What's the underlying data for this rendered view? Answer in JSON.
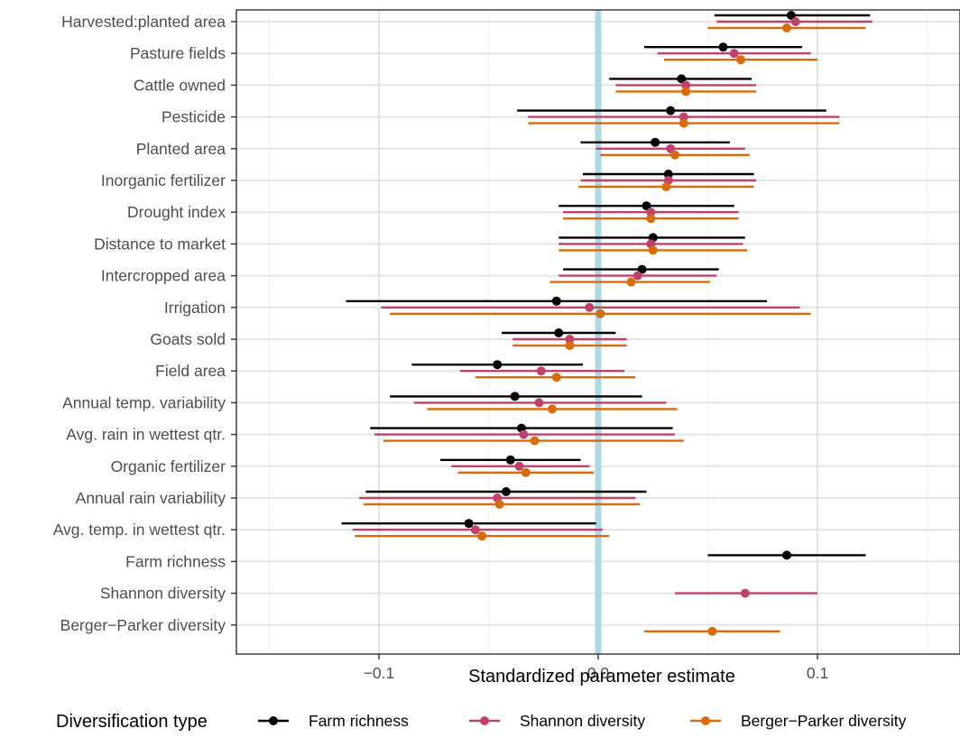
{
  "chart_data": {
    "type": "scatter",
    "subtype": "forest-plot (point estimate with interval)",
    "xlabel": "Standardized parameter estimate",
    "ylabel": "",
    "xlim": [
      -0.165,
      0.165
    ],
    "x_ticks": [
      -0.1,
      0.0,
      0.1
    ],
    "x_tick_labels": [
      "−0.1",
      "0.0",
      "0.1"
    ],
    "reference_line": {
      "x": 0.0,
      "color": "#add8e6"
    },
    "grid": true,
    "legend": {
      "title": "Diversification type",
      "position": "bottom",
      "entries": [
        "Farm richness",
        "Shannon diversity",
        "Berger−Parker diversity"
      ]
    },
    "categories": [
      "Harvested:planted area",
      "Pasture fields",
      "Cattle owned",
      "Pesticide",
      "Planted area",
      "Inorganic fertilizer",
      "Drought index",
      "Distance to market",
      "Intercropped area",
      "Irrigation",
      "Goats sold",
      "Field area",
      "Annual temp. variability",
      "Avg. rain in wettest qtr.",
      "Organic fertilizer",
      "Annual rain variability",
      "Avg. temp. in wettest qtr.",
      "Farm richness",
      "Shannon diversity",
      "Berger−Parker diversity"
    ],
    "series": [
      {
        "name": "Farm richness",
        "color": "#000000",
        "estimate": [
          0.088,
          0.057,
          0.038,
          0.033,
          0.026,
          0.032,
          0.022,
          0.025,
          0.02,
          -0.019,
          -0.018,
          -0.046,
          -0.038,
          -0.035,
          -0.04,
          -0.042,
          -0.059,
          0.086,
          null,
          null
        ],
        "lower": [
          0.053,
          0.021,
          0.005,
          -0.037,
          -0.008,
          -0.007,
          -0.018,
          -0.018,
          -0.016,
          -0.115,
          -0.044,
          -0.085,
          -0.095,
          -0.104,
          -0.072,
          -0.106,
          -0.117,
          0.05,
          null,
          null
        ],
        "upper": [
          0.124,
          0.093,
          0.07,
          0.104,
          0.06,
          0.071,
          0.062,
          0.067,
          0.055,
          0.077,
          0.008,
          -0.007,
          0.02,
          0.034,
          -0.008,
          0.022,
          -0.001,
          0.122,
          null,
          null
        ]
      },
      {
        "name": "Shannon diversity",
        "color": "#c0426b",
        "estimate": [
          0.09,
          0.062,
          0.04,
          0.039,
          0.033,
          0.032,
          0.024,
          0.024,
          0.018,
          -0.004,
          -0.013,
          -0.026,
          -0.027,
          -0.034,
          -0.036,
          -0.046,
          -0.056,
          null,
          0.067,
          null
        ],
        "lower": [
          0.054,
          0.027,
          0.008,
          -0.032,
          -0.001,
          -0.008,
          -0.016,
          -0.018,
          -0.018,
          -0.099,
          -0.039,
          -0.063,
          -0.084,
          -0.102,
          -0.067,
          -0.109,
          -0.112,
          null,
          0.035,
          null
        ],
        "upper": [
          0.125,
          0.097,
          0.072,
          0.11,
          0.067,
          0.072,
          0.064,
          0.066,
          0.054,
          0.092,
          0.013,
          0.012,
          0.031,
          0.035,
          -0.004,
          0.017,
          0.002,
          null,
          0.1,
          null
        ]
      },
      {
        "name": "Berger−Parker diversity",
        "color": "#d96b0b",
        "estimate": [
          0.086,
          0.065,
          0.04,
          0.039,
          0.035,
          0.031,
          0.024,
          0.025,
          0.015,
          0.001,
          -0.013,
          -0.019,
          -0.021,
          -0.029,
          -0.033,
          -0.045,
          -0.053,
          null,
          null,
          0.052
        ],
        "lower": [
          0.05,
          0.03,
          0.008,
          -0.032,
          0.001,
          -0.009,
          -0.016,
          -0.018,
          -0.022,
          -0.095,
          -0.039,
          -0.056,
          -0.078,
          -0.098,
          -0.064,
          -0.107,
          -0.111,
          null,
          null,
          0.021
        ],
        "upper": [
          0.122,
          0.1,
          0.072,
          0.11,
          0.069,
          0.071,
          0.064,
          0.068,
          0.051,
          0.097,
          0.013,
          0.017,
          0.036,
          0.039,
          -0.002,
          0.019,
          0.005,
          null,
          null,
          0.083
        ]
      }
    ]
  }
}
